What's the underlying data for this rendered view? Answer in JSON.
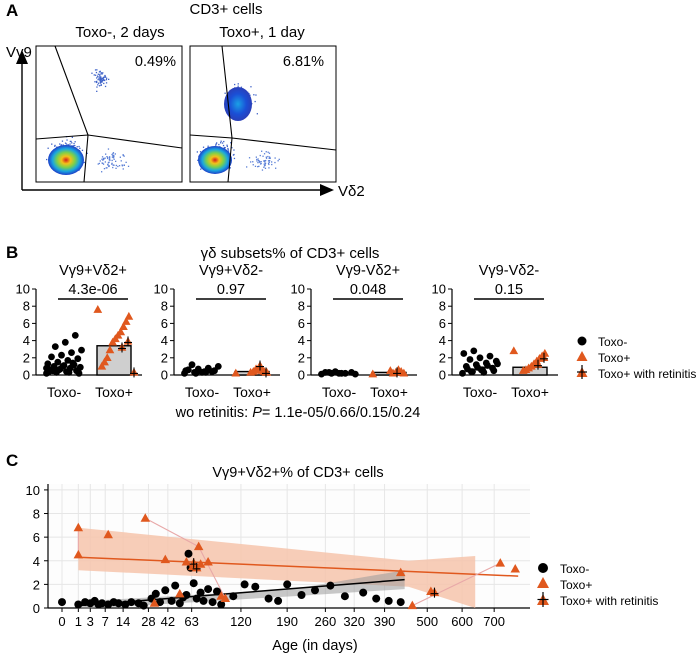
{
  "colors": {
    "toxo_minus": "#000000",
    "toxo_plus": "#e0581e",
    "band_plus": "#f6c4ab",
    "band_minus": "#9a9a9a",
    "grid": "#e6e6e6"
  },
  "panel_a": {
    "letter": "A",
    "title": "CD3+ cells",
    "plots": [
      {
        "label": "Toxo-, 2 days",
        "percent": "0.49%"
      },
      {
        "label": "Toxo+, 1 day",
        "percent": "6.81%"
      }
    ],
    "y_axis_label": "Vγ9",
    "x_axis_label": "Vδ2"
  },
  "panel_b": {
    "letter": "B",
    "title": "γδ subsets% of CD3+ cells",
    "yticks": [
      "0",
      "2",
      "4",
      "6",
      "8",
      "10"
    ],
    "groups": [
      "Toxo-",
      "Toxo+"
    ],
    "legend": [
      {
        "label": "Toxo-",
        "marker": "circle"
      },
      {
        "label": "Toxo+",
        "marker": "triangle"
      },
      {
        "label": "Toxo+ with retinitis",
        "marker": "triangle-cross"
      }
    ],
    "footnote_prefix": "wo retinitis: ",
    "footnote_p": "P",
    "footnote_values": "= 1.1e-05/0.66/0.15/0.24"
  },
  "panel_c": {
    "letter": "C",
    "title": "Vγ9+Vδ2+% of CD3+ cells",
    "xlabel": "Age (in days)",
    "legend": [
      {
        "label": "Toxo-",
        "marker": "circle"
      },
      {
        "label": "Toxo+",
        "marker": "triangle"
      },
      {
        "label": "Toxo+ with retinitis",
        "marker": "triangle-cross"
      }
    ]
  },
  "chart_data": [
    {
      "type": "scatter",
      "panel": "B",
      "subplots": [
        {
          "title": "Vγ9+Vδ2+",
          "pvalue": "4.3e-06",
          "ylim": [
            0,
            10
          ],
          "bar_toxo_plus": 3.4,
          "toxo_minus": [
            0.2,
            0.3,
            0.4,
            0.5,
            0.6,
            0.7,
            0.8,
            0.9,
            1.0,
            1.1,
            1.2,
            1.3,
            1.5,
            1.7,
            1.9,
            2.1,
            2.3,
            2.6,
            2.9,
            3.3,
            3.8,
            4.6,
            0.4,
            0.6,
            0.3,
            0.2,
            0.5,
            1.0,
            1.4,
            0.8
          ],
          "toxo_plus": [
            7.6,
            6.8,
            6.2,
            5.6,
            5.0,
            4.6,
            4.2,
            3.8,
            2.9,
            2.0,
            1.5,
            1.0
          ],
          "toxo_plus_retinitis": [
            3.2,
            3.9,
            0.3
          ]
        },
        {
          "title": "Vγ9+Vδ2-",
          "pvalue": "0.97",
          "ylim": [
            0,
            10
          ],
          "bar_toxo_plus": 0.4,
          "toxo_minus": [
            0.2,
            0.3,
            0.4,
            0.5,
            0.6,
            0.7,
            0.8,
            1.0,
            1.2,
            0.3,
            0.4,
            0.5,
            0.2,
            0.3
          ],
          "toxo_plus": [
            0.2,
            0.3,
            0.4,
            0.5,
            0.6,
            0.7,
            0.4,
            0.3
          ],
          "toxo_plus_retinitis": [
            1.1,
            0.3
          ]
        },
        {
          "title": "Vγ9-Vδ2+",
          "pvalue": "0.048",
          "ylim": [
            0,
            10
          ],
          "bar_toxo_plus": 0.3,
          "toxo_minus": [
            0.1,
            0.2,
            0.2,
            0.3,
            0.3,
            0.4,
            0.2,
            0.1,
            0.3,
            0.2
          ],
          "toxo_plus": [
            0.1,
            0.2,
            0.4,
            0.6,
            0.3,
            0.2,
            0.5
          ],
          "toxo_plus_retinitis": [
            0.3
          ]
        },
        {
          "title": "Vγ9-Vδ2-",
          "pvalue": "0.15",
          "ylim": [
            0,
            10
          ],
          "bar_toxo_plus": 0.9,
          "toxo_minus": [
            0.2,
            0.4,
            0.6,
            0.8,
            1.0,
            1.2,
            1.4,
            1.6,
            1.8,
            2.0,
            2.2,
            2.5,
            2.8,
            0.3,
            0.5,
            0.7,
            0.9,
            1.1,
            1.3,
            0.4,
            0.6
          ],
          "toxo_plus": [
            2.8,
            2.5,
            2.2,
            1.9,
            1.6,
            1.3,
            1.0,
            0.8,
            0.6,
            0.5
          ],
          "toxo_plus_retinitis": [
            1.2,
            2.0
          ]
        }
      ]
    },
    {
      "type": "scatter",
      "panel": "C",
      "title": "Vγ9+Vδ2+% of CD3+ cells",
      "xlabel": "Age (in days)",
      "x_scale": "sqrt",
      "xticks": [
        0,
        1,
        3,
        7,
        14,
        28,
        42,
        63,
        120,
        190,
        260,
        320,
        390,
        500,
        600,
        700
      ],
      "yticks": [
        0,
        2,
        4,
        6,
        8,
        10
      ],
      "ylim": [
        0,
        10.5
      ],
      "toxo_minus": [
        [
          0,
          0.5
        ],
        [
          1,
          0.3
        ],
        [
          2,
          0.5
        ],
        [
          3,
          0.4
        ],
        [
          4,
          0.6
        ],
        [
          5,
          0.3
        ],
        [
          6,
          0.4
        ],
        [
          8,
          0.3
        ],
        [
          10,
          0.5
        ],
        [
          12,
          0.4
        ],
        [
          15,
          0.3
        ],
        [
          18,
          0.5
        ],
        [
          22,
          0.4
        ],
        [
          25,
          0.2
        ],
        [
          30,
          0.8
        ],
        [
          33,
          1.2
        ],
        [
          36,
          0.5
        ],
        [
          40,
          1.5
        ],
        [
          45,
          0.6
        ],
        [
          48,
          1.9
        ],
        [
          52,
          0.4
        ],
        [
          55,
          0.9
        ],
        [
          58,
          1.1
        ],
        [
          60,
          4.6
        ],
        [
          62,
          3.4
        ],
        [
          65,
          2.1
        ],
        [
          68,
          0.8
        ],
        [
          72,
          1.3
        ],
        [
          75,
          0.6
        ],
        [
          80,
          1.6
        ],
        [
          85,
          0.5
        ],
        [
          90,
          1.4
        ],
        [
          95,
          0.3
        ],
        [
          110,
          1.0
        ],
        [
          125,
          2.0
        ],
        [
          140,
          1.8
        ],
        [
          160,
          0.8
        ],
        [
          175,
          0.6
        ],
        [
          190,
          2.0
        ],
        [
          215,
          1.1
        ],
        [
          240,
          1.5
        ],
        [
          270,
          1.9
        ],
        [
          300,
          1.0
        ],
        [
          340,
          1.3
        ],
        [
          370,
          0.8
        ],
        [
          400,
          0.6
        ],
        [
          430,
          0.5
        ]
      ],
      "toxo_plus": [
        [
          1,
          6.8
        ],
        [
          1,
          4.5
        ],
        [
          8,
          6.2
        ],
        [
          26,
          7.6
        ],
        [
          32,
          0.4
        ],
        [
          40,
          4.1
        ],
        [
          52,
          1.2
        ],
        [
          58,
          3.9
        ],
        [
          64,
          3.5
        ],
        [
          70,
          5.2
        ],
        [
          72,
          3.7
        ],
        [
          80,
          3.9
        ],
        [
          95,
          1.0
        ],
        [
          100,
          0.8
        ],
        [
          430,
          3.0
        ],
        [
          510,
          1.4
        ],
        [
          460,
          0.2
        ],
        [
          720,
          3.8
        ],
        [
          770,
          3.3
        ]
      ],
      "toxo_plus_retinitis": [
        [
          65,
          3.8
        ],
        [
          68,
          3.4
        ],
        [
          520,
          1.3
        ]
      ],
      "trend_toxo_plus": {
        "start": [
          1,
          4.3
        ],
        "end": [
          780,
          2.7
        ]
      },
      "trend_toxo_minus": {
        "start": [
          1,
          0.2
        ],
        "end": [
          440,
          2.4
        ]
      },
      "pair_lines": [
        [
          [
            26,
            7.6
          ],
          [
            70,
            5.2
          ]
        ],
        [
          [
            70,
            5.2
          ],
          [
            100,
            0.8
          ]
        ],
        [
          [
            58,
            3.9
          ],
          [
            64,
            3.5
          ]
        ],
        [
          [
            460,
            0.2
          ],
          [
            720,
            3.8
          ]
        ],
        [
          [
            1,
            6.8
          ],
          [
            1,
            4.5
          ]
        ]
      ]
    }
  ]
}
